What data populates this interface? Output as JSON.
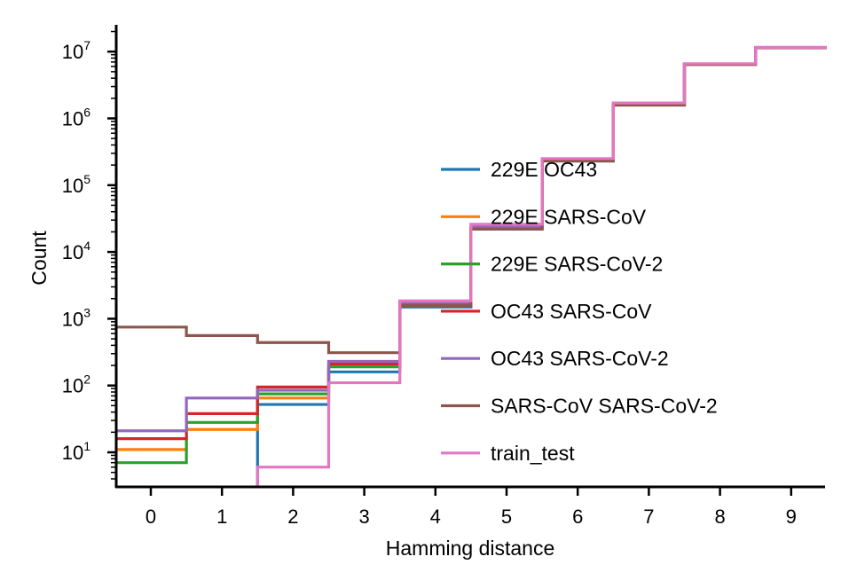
{
  "chart_data": {
    "type": "line",
    "subtype": "step",
    "title": "",
    "xlabel": "Hamming distance",
    "ylabel": "Count",
    "x_scale": "linear",
    "y_scale": "log",
    "xlim": [
      -0.5,
      9.5
    ],
    "ylim": [
      3,
      25000000
    ],
    "x_ticks": [
      0,
      1,
      2,
      3,
      4,
      5,
      6,
      7,
      8,
      9
    ],
    "y_ticks": [
      {
        "value": 10,
        "base": "10",
        "exp": "1"
      },
      {
        "value": 100,
        "base": "10",
        "exp": "2"
      },
      {
        "value": 1000,
        "base": "10",
        "exp": "3"
      },
      {
        "value": 10000,
        "base": "10",
        "exp": "4"
      },
      {
        "value": 100000,
        "base": "10",
        "exp": "5"
      },
      {
        "value": 1000000,
        "base": "10",
        "exp": "6"
      },
      {
        "value": 10000000,
        "base": "10",
        "exp": "7"
      }
    ],
    "grid": false,
    "legend_position": "center-right",
    "x": [
      0,
      1,
      2,
      3,
      4,
      5,
      6,
      7,
      8,
      9
    ],
    "series": [
      {
        "name": "229E OC43",
        "color": "#1f77b4",
        "values": [
          null,
          null,
          52,
          160,
          1500,
          22000,
          230000,
          1600000,
          6500000,
          11500000
        ]
      },
      {
        "name": "229E SARS-CoV",
        "color": "#ff7f0e",
        "values": [
          11,
          22,
          65,
          200,
          1650,
          23000,
          235000,
          1600000,
          6500000,
          11500000
        ]
      },
      {
        "name": "229E SARS-CoV-2",
        "color": "#2ca02c",
        "values": [
          7,
          28,
          75,
          190,
          1600,
          22500,
          232000,
          1600000,
          6500000,
          11500000
        ]
      },
      {
        "name": "OC43 SARS-CoV",
        "color": "#d62728",
        "values": [
          16,
          38,
          95,
          210,
          1700,
          23500,
          238000,
          1620000,
          6500000,
          11500000
        ]
      },
      {
        "name": "OC43 SARS-CoV-2",
        "color": "#9467bd",
        "values": [
          21,
          65,
          85,
          230,
          1750,
          24000,
          240000,
          1620000,
          6500000,
          11500000
        ]
      },
      {
        "name": "SARS-CoV SARS-CoV-2",
        "color": "#8c564b",
        "values": [
          750,
          560,
          440,
          310,
          1580,
          22000,
          230000,
          1580000,
          6400000,
          11400000
        ]
      },
      {
        "name": "train_test",
        "color": "#e377c2",
        "values": [
          null,
          null,
          6,
          110,
          1850,
          26000,
          250000,
          1700000,
          6600000,
          11600000
        ]
      }
    ]
  }
}
